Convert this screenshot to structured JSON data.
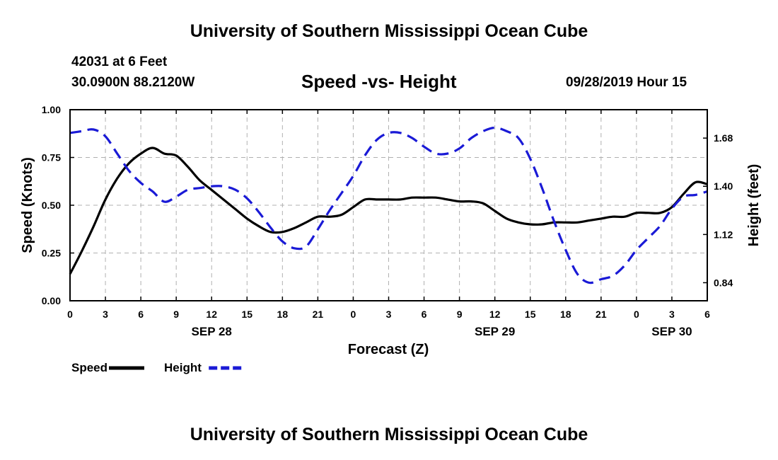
{
  "header": {
    "title_top": "University of Southern Mississippi Ocean Cube",
    "station": "42031 at 6 Feet",
    "coords": "30.0900N 88.2120W",
    "subtitle": "Speed -vs- Height",
    "datetime": "09/28/2019 Hour 15",
    "title_bottom": "University of Southern Mississippi Ocean Cube"
  },
  "colors": {
    "speed": "#000000",
    "height": "#1a1ad6",
    "grid": "#b0b0b0"
  },
  "chart_data": {
    "type": "line",
    "x_range": [
      0,
      54
    ],
    "x_ticks": [
      {
        "x": 0,
        "label": "0"
      },
      {
        "x": 3,
        "label": "3"
      },
      {
        "x": 6,
        "label": "6"
      },
      {
        "x": 9,
        "label": "9"
      },
      {
        "x": 12,
        "label": "12"
      },
      {
        "x": 15,
        "label": "15"
      },
      {
        "x": 18,
        "label": "18"
      },
      {
        "x": 21,
        "label": "21"
      },
      {
        "x": 24,
        "label": "0"
      },
      {
        "x": 27,
        "label": "3"
      },
      {
        "x": 30,
        "label": "6"
      },
      {
        "x": 33,
        "label": "9"
      },
      {
        "x": 36,
        "label": "12"
      },
      {
        "x": 39,
        "label": "15"
      },
      {
        "x": 42,
        "label": "18"
      },
      {
        "x": 45,
        "label": "21"
      },
      {
        "x": 48,
        "label": "0"
      },
      {
        "x": 51,
        "label": "3"
      },
      {
        "x": 54,
        "label": "6"
      }
    ],
    "date_labels": [
      {
        "x": 12,
        "label": "SEP 28"
      },
      {
        "x": 36,
        "label": "SEP 29"
      },
      {
        "x": 51,
        "label": "SEP 30"
      }
    ],
    "xlabel": "Forecast (Z)",
    "y_left": {
      "label": "Speed (Knots)",
      "range": [
        0,
        1
      ],
      "ticks": [
        "0.00",
        "0.25",
        "0.50",
        "0.75",
        "1.00"
      ]
    },
    "y_right": {
      "label": "Height (feet)",
      "range": [
        0.735,
        1.845
      ],
      "ticks": [
        "0.84",
        "1.12",
        "1.40",
        "1.68"
      ]
    },
    "series": [
      {
        "name": "Speed",
        "axis": "left",
        "style": "solid",
        "x": [
          0,
          1,
          2,
          3,
          4,
          5,
          6,
          7,
          8,
          9,
          10,
          11,
          12,
          13,
          14,
          15,
          16,
          17,
          18,
          19,
          20,
          21,
          22,
          23,
          24,
          25,
          26,
          27,
          28,
          29,
          30,
          31,
          32,
          33,
          34,
          35,
          36,
          37,
          38,
          39,
          40,
          41,
          42,
          43,
          44,
          45,
          46,
          47,
          48,
          49,
          50,
          51,
          52,
          53,
          54
        ],
        "values": [
          0.14,
          0.26,
          0.39,
          0.53,
          0.64,
          0.72,
          0.77,
          0.8,
          0.77,
          0.76,
          0.7,
          0.63,
          0.58,
          0.53,
          0.48,
          0.43,
          0.39,
          0.36,
          0.36,
          0.38,
          0.41,
          0.44,
          0.44,
          0.45,
          0.49,
          0.53,
          0.53,
          0.53,
          0.53,
          0.54,
          0.54,
          0.54,
          0.53,
          0.52,
          0.52,
          0.51,
          0.47,
          0.43,
          0.41,
          0.4,
          0.4,
          0.41,
          0.41,
          0.41,
          0.42,
          0.43,
          0.44,
          0.44,
          0.46,
          0.46,
          0.46,
          0.49,
          0.56,
          0.62,
          0.61
        ]
      },
      {
        "name": "Height",
        "axis": "right",
        "style": "dashed",
        "x": [
          0,
          1,
          2,
          3,
          4,
          5,
          6,
          7,
          8,
          9,
          10,
          11,
          12,
          13,
          14,
          15,
          16,
          17,
          18,
          19,
          20,
          21,
          22,
          23,
          24,
          25,
          26,
          27,
          28,
          29,
          30,
          31,
          32,
          33,
          34,
          35,
          36,
          37,
          38,
          39,
          40,
          41,
          42,
          43,
          44,
          45,
          46,
          47,
          48,
          49,
          50,
          51,
          52,
          53,
          54
        ],
        "values": [
          1.71,
          1.72,
          1.73,
          1.69,
          1.59,
          1.49,
          1.42,
          1.37,
          1.31,
          1.34,
          1.38,
          1.39,
          1.4,
          1.4,
          1.38,
          1.33,
          1.25,
          1.16,
          1.08,
          1.04,
          1.05,
          1.15,
          1.26,
          1.36,
          1.46,
          1.58,
          1.67,
          1.71,
          1.71,
          1.68,
          1.63,
          1.59,
          1.59,
          1.62,
          1.68,
          1.72,
          1.74,
          1.72,
          1.68,
          1.56,
          1.39,
          1.2,
          1.03,
          0.89,
          0.84,
          0.86,
          0.88,
          0.94,
          1.03,
          1.1,
          1.17,
          1.27,
          1.34,
          1.35,
          1.37
        ]
      }
    ],
    "legend": [
      {
        "label": "Speed",
        "color": "#000000",
        "style": "solid"
      },
      {
        "label": "Height",
        "color": "#1a1ad6",
        "style": "dashed"
      }
    ],
    "grid": true,
    "legend_position": "bottom-left"
  }
}
